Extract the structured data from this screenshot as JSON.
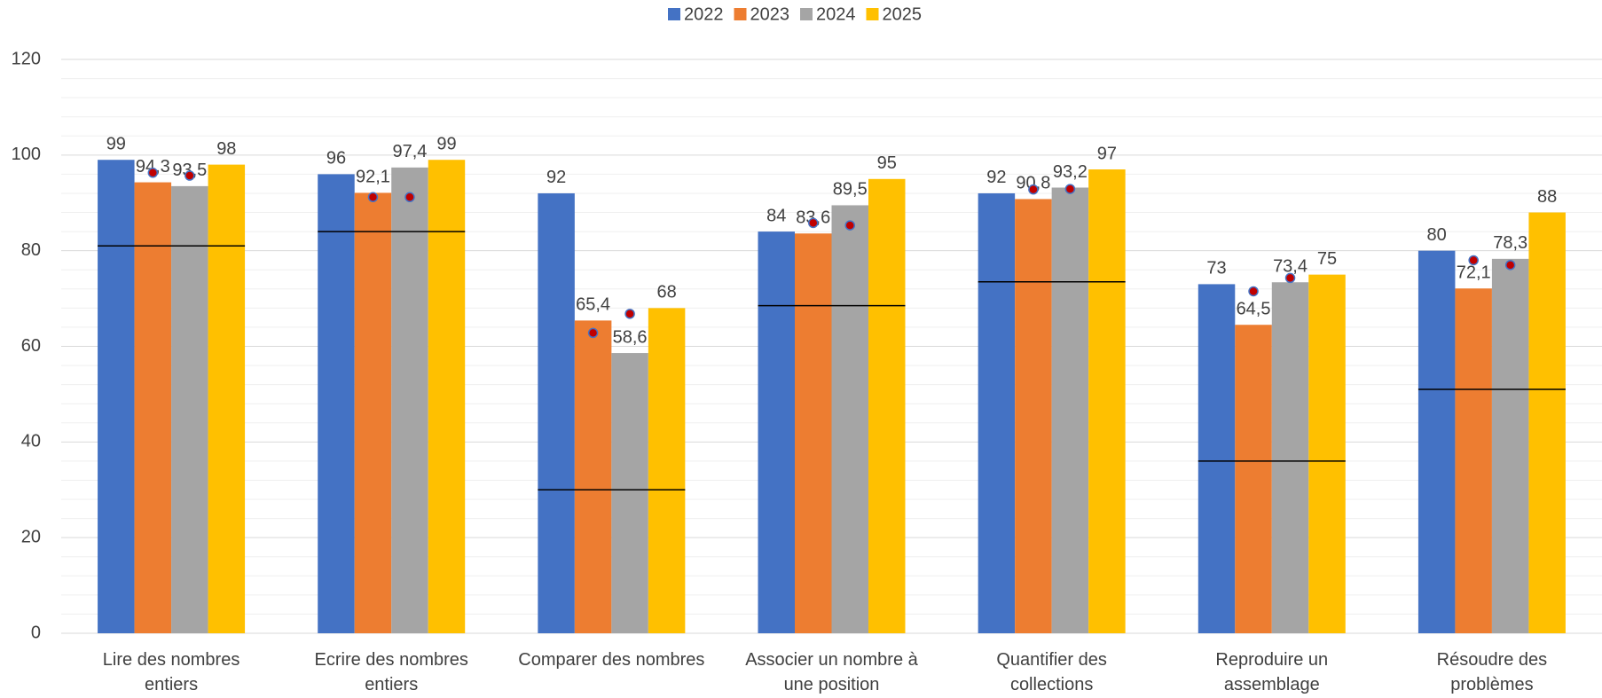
{
  "chart_data": {
    "type": "bar",
    "categories": [
      "Lire des nombres entiers",
      "Ecrire des nombres entiers",
      "Comparer des nombres",
      "Associer un nombre à une position",
      "Quantifier des collections",
      "Reproduire un assemblage",
      "Résoudre des problèmes"
    ],
    "series": [
      {
        "name": "2022",
        "color": "#4472c4",
        "values": [
          99,
          96,
          92,
          84,
          92,
          73,
          80
        ]
      },
      {
        "name": "2023",
        "color": "#ed7d31",
        "values": [
          94.3,
          92.1,
          65.4,
          83.6,
          90.8,
          64.5,
          72.1
        ],
        "value_labels": [
          "94,3",
          "92,1",
          "65,4",
          "83,6",
          "90,8",
          "64,5",
          "72,1"
        ]
      },
      {
        "name": "2024",
        "color": "#a5a5a5",
        "values": [
          93.5,
          97.4,
          58.6,
          89.5,
          93.2,
          73.4,
          78.3
        ],
        "value_labels": [
          "93,5",
          "97,4",
          "58,6",
          "89,5",
          "93,2",
          "73,4",
          "78,3"
        ]
      },
      {
        "name": "2025",
        "color": "#ffc000",
        "values": [
          98,
          99,
          68,
          95,
          97,
          75,
          88
        ]
      }
    ],
    "reference_line": {
      "color": "#000000",
      "values": [
        81,
        84,
        30,
        68.5,
        73.5,
        36,
        51
      ]
    },
    "dots": {
      "color": "#c00000",
      "series": [
        {
          "values": [
            96.3,
            91.2,
            62.8,
            85.8,
            92.8,
            71.5,
            78
          ]
        },
        {
          "values": [
            95.7,
            91.2,
            66.8,
            85.3,
            92.9,
            74.3,
            77
          ]
        }
      ]
    },
    "ylim": [
      0,
      120
    ],
    "yticks": [
      0,
      20,
      40,
      60,
      80,
      100,
      120
    ],
    "minor_yticks": [
      4,
      8,
      12,
      16,
      24,
      28,
      32,
      36,
      44,
      48,
      52,
      56,
      64,
      68,
      72,
      76,
      84,
      88,
      92,
      96,
      104,
      108,
      112,
      116
    ],
    "grid": true,
    "legend": "top"
  }
}
